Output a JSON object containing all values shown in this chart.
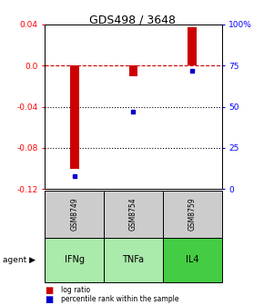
{
  "title": "GDS498 / 3648",
  "samples": [
    "GSM8749",
    "GSM8754",
    "GSM8759"
  ],
  "agents": [
    "IFNg",
    "TNFa",
    "IL4"
  ],
  "log_ratios": [
    -0.1,
    -0.01,
    0.037
  ],
  "percentile_ranks": [
    8.0,
    47.0,
    72.0
  ],
  "ylim_left": [
    -0.12,
    0.04
  ],
  "ylim_right": [
    0,
    100
  ],
  "left_ticks": [
    0.04,
    0.0,
    -0.04,
    -0.08,
    -0.12
  ],
  "right_ticks": [
    100,
    75,
    50,
    25,
    0
  ],
  "bar_color": "#cc0000",
  "square_color": "#0000cc",
  "dashed_line_color": "#cc0000",
  "dotted_line_color": "#000000",
  "gsm_bg_color": "#cccccc",
  "agent_bg_colors": [
    "#aaeaaa",
    "#aaeaaa",
    "#44cc44"
  ],
  "background_color": "#ffffff",
  "legend_bar_label": "log ratio",
  "legend_sq_label": "percentile rank within the sample"
}
